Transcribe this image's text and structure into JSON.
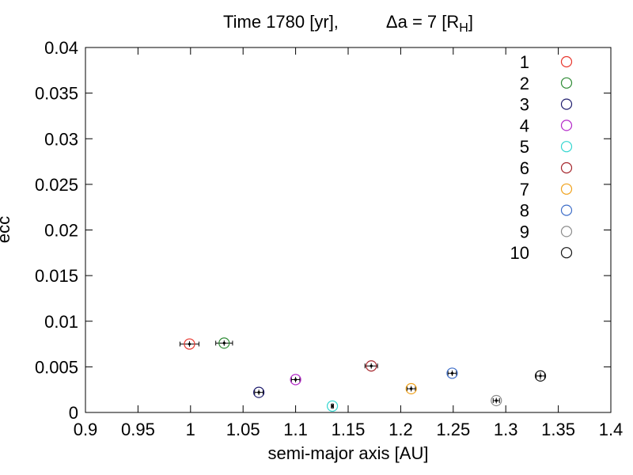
{
  "chart_data": {
    "type": "scatter",
    "title": {
      "time_part": "Time 1780 [yr],",
      "delta_part": "Δa = 7 [R",
      "delta_sub": "H",
      "delta_close": "]"
    },
    "xlabel": "semi-major axis [AU]",
    "ylabel": "ecc",
    "xlim": [
      0.9,
      1.4
    ],
    "ylim": [
      0,
      0.04
    ],
    "xticks": [
      {
        "value": 0.9,
        "label": "0.9"
      },
      {
        "value": 0.95,
        "label": "0.95"
      },
      {
        "value": 1.0,
        "label": "1"
      },
      {
        "value": 1.05,
        "label": "1.05"
      },
      {
        "value": 1.1,
        "label": "1.1"
      },
      {
        "value": 1.15,
        "label": "1.15"
      },
      {
        "value": 1.2,
        "label": "1.2"
      },
      {
        "value": 1.25,
        "label": "1.25"
      },
      {
        "value": 1.3,
        "label": "1.3"
      },
      {
        "value": 1.35,
        "label": "1.35"
      },
      {
        "value": 1.4,
        "label": "1.4"
      }
    ],
    "yticks": [
      {
        "value": 0,
        "label": "0"
      },
      {
        "value": 0.005,
        "label": "0.005"
      },
      {
        "value": 0.01,
        "label": "0.01"
      },
      {
        "value": 0.015,
        "label": "0.015"
      },
      {
        "value": 0.02,
        "label": "0.02"
      },
      {
        "value": 0.025,
        "label": "0.025"
      },
      {
        "value": 0.03,
        "label": "0.03"
      },
      {
        "value": 0.035,
        "label": "0.035"
      },
      {
        "value": 0.04,
        "label": "0.04"
      }
    ],
    "legend_position": "top-right",
    "series": [
      {
        "name": "1",
        "color": "#e8352c",
        "x": 0.999,
        "y": 0.0075,
        "xerr": 0.009,
        "yerr": 0.0003
      },
      {
        "name": "2",
        "color": "#2e8b35",
        "x": 1.032,
        "y": 0.0076,
        "xerr": 0.008,
        "yerr": 0.0003
      },
      {
        "name": "3",
        "color": "#1f1d6e",
        "x": 1.065,
        "y": 0.0022,
        "xerr": 0.004,
        "yerr": 0.0003
      },
      {
        "name": "4",
        "color": "#b429c9",
        "x": 1.1,
        "y": 0.0036,
        "xerr": 0.004,
        "yerr": 0.0003
      },
      {
        "name": "5",
        "color": "#33d6d0",
        "x": 1.135,
        "y": 0.0007,
        "xerr": 0.001,
        "yerr": 0.0003
      },
      {
        "name": "6",
        "color": "#a5262c",
        "x": 1.172,
        "y": 0.0051,
        "xerr": 0.006,
        "yerr": 0.0003
      },
      {
        "name": "7",
        "color": "#f0a21c",
        "x": 1.21,
        "y": 0.0026,
        "xerr": 0.004,
        "yerr": 0.0003
      },
      {
        "name": "8",
        "color": "#3d6dc8",
        "x": 1.249,
        "y": 0.0043,
        "xerr": 0.004,
        "yerr": 0.0003
      },
      {
        "name": "9",
        "color": "#8c8c8c",
        "x": 1.291,
        "y": 0.0013,
        "xerr": 0.003,
        "yerr": 0.0003
      },
      {
        "name": "10",
        "color": "#111111",
        "x": 1.333,
        "y": 0.004,
        "xerr": 0.004,
        "yerr": 0.0004
      }
    ]
  }
}
